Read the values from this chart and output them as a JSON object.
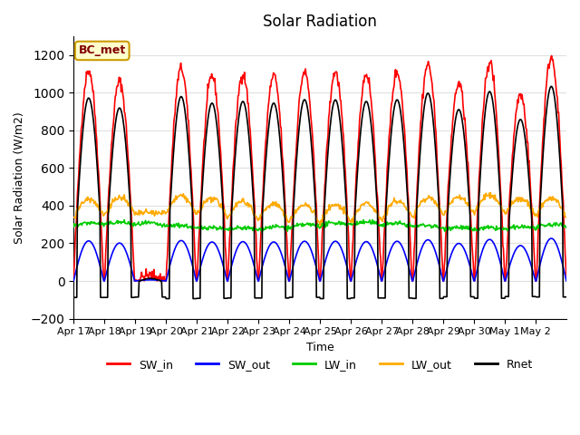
{
  "title": "Solar Radiation",
  "xlabel": "Time",
  "ylabel": "Solar Radiation (W/m2)",
  "ylim": [
    -200,
    1300
  ],
  "yticks": [
    -200,
    0,
    200,
    400,
    600,
    800,
    1000,
    1200
  ],
  "legend_label": "BC_met",
  "legend_box_color": "#ffffcc",
  "legend_box_edge": "#cc9900",
  "series_colors": {
    "SW_in": "#ff0000",
    "SW_out": "#0000ff",
    "LW_in": "#00cc00",
    "LW_out": "#ffaa00",
    "Rnet": "#000000"
  },
  "xtick_labels": [
    "Apr 17",
    "Apr 18",
    "Apr 19",
    "Apr 20",
    "Apr 21",
    "Apr 22",
    "Apr 23",
    "Apr 24",
    "Apr 25",
    "Apr 26",
    "Apr 27",
    "Apr 28",
    "Apr 29",
    "Apr 30",
    "May 1",
    "May 2"
  ],
  "n_days": 16,
  "lw": 1.2,
  "background_color": "#ffffff",
  "grid_color": "#e0e0e0"
}
